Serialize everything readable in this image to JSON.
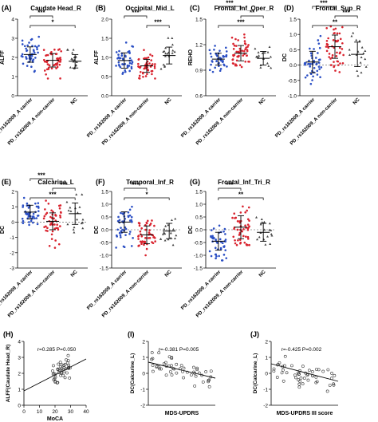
{
  "figure": {
    "scatter_colors": {
      "carrier": "#2b4fc4",
      "noncarrier": "#d9232e",
      "nc": "#444444"
    }
  },
  "chart_data": [
    {
      "type": "scatter",
      "panel": "(A)",
      "title": "Caudate Head_R",
      "ylabel": "ALFF",
      "categories": [
        "PD_rs162009_A carrier",
        "PD_rs162009_A non-carrier",
        "NC"
      ],
      "ylim": [
        0,
        4
      ],
      "yticks": [
        0,
        1,
        2,
        3,
        4
      ],
      "means": [
        2.15,
        1.85,
        1.8
      ],
      "sds": [
        0.4,
        0.35,
        0.35
      ],
      "ranges": [
        [
          1.0,
          3.6
        ],
        [
          0.9,
          3.2
        ],
        [
          1.3,
          2.4
        ]
      ],
      "counts": [
        45,
        50,
        18
      ],
      "significance": [
        {
          "from": 0,
          "to": 1,
          "label": "***"
        },
        {
          "from": 0,
          "to": 2,
          "label": "*"
        }
      ],
      "reference_line": null
    },
    {
      "type": "scatter",
      "panel": "(B)",
      "title": "Occipital_Mid_L",
      "ylabel": "ALFF",
      "categories": [
        "PD_rs162009_A carrier",
        "PD_rs162009_A non-carrier",
        "NC"
      ],
      "ylim": [
        0.0,
        2.0
      ],
      "yticks": [
        0.0,
        0.5,
        1.0,
        1.5,
        2.0
      ],
      "means": [
        0.92,
        0.78,
        1.05
      ],
      "sds": [
        0.2,
        0.17,
        0.22
      ],
      "ranges": [
        [
          0.5,
          1.6
        ],
        [
          0.45,
          1.35
        ],
        [
          0.7,
          1.55
        ]
      ],
      "counts": [
        45,
        50,
        18
      ],
      "significance": [
        {
          "from": 0,
          "to": 1,
          "label": "***"
        },
        {
          "from": 1,
          "to": 2,
          "label": "***"
        }
      ],
      "reference_line": null
    },
    {
      "type": "scatter",
      "panel": "(C)",
      "title": "Frontal_Inf_Oper_R",
      "ylabel": "REHO",
      "categories": [
        "PD_rs162009_A carrier",
        "PD_rs162009_A non-carrier",
        "NC"
      ],
      "ylim": [
        0.6,
        1.5
      ],
      "yticks": [
        0.6,
        0.9,
        1.2,
        1.5
      ],
      "means": [
        1.03,
        1.1,
        1.04
      ],
      "sds": [
        0.07,
        0.09,
        0.08
      ],
      "ranges": [
        [
          0.88,
          1.2
        ],
        [
          0.9,
          1.32
        ],
        [
          0.9,
          1.2
        ]
      ],
      "counts": [
        45,
        50,
        18
      ],
      "significance": [
        {
          "from": 0,
          "to": 1,
          "label": "***"
        },
        {
          "from": 1,
          "to": 2,
          "label": "**"
        },
        {
          "from": 0,
          "to": 2,
          "label": "***"
        }
      ],
      "reference_line": null
    },
    {
      "type": "scatter",
      "panel": "(D)",
      "title": "Frontal_Sup_R",
      "ylabel": "DC",
      "categories": [
        "PD_rs162009_A carrier",
        "PD_rs162009_A non-carrier",
        "NC"
      ],
      "ylim": [
        -1.0,
        1.5
      ],
      "yticks": [
        -1.0,
        -0.5,
        0.0,
        0.5,
        1.0,
        1.5
      ],
      "means": [
        0.1,
        0.6,
        0.35
      ],
      "sds": [
        0.35,
        0.38,
        0.4
      ],
      "ranges": [
        [
          -0.75,
          0.95
        ],
        [
          -0.35,
          1.4
        ],
        [
          -0.35,
          1.1
        ]
      ],
      "counts": [
        45,
        50,
        18
      ],
      "significance": [
        {
          "from": 0,
          "to": 1,
          "label": "***"
        },
        {
          "from": 1,
          "to": 2,
          "label": "***"
        },
        {
          "from": 0,
          "to": 2,
          "label": "**"
        }
      ],
      "reference_line": 0
    },
    {
      "type": "scatter",
      "panel": "(E)",
      "title": "Calcarine_L",
      "ylabel": "DC",
      "categories": [
        "PD_rs162009_A carrier",
        "PD_rs162009_A non-carrier",
        "NC"
      ],
      "ylim": [
        -3,
        2
      ],
      "yticks": [
        -3,
        -2,
        -1,
        0,
        1,
        2
      ],
      "means": [
        0.65,
        0.05,
        0.55
      ],
      "sds": [
        0.45,
        0.55,
        0.7
      ],
      "ranges": [
        [
          -0.6,
          1.7
        ],
        [
          -1.8,
          1.4
        ],
        [
          -0.8,
          1.8
        ]
      ],
      "counts": [
        45,
        50,
        18
      ],
      "significance": [
        {
          "from": 0,
          "to": 1,
          "label": "***"
        },
        {
          "from": 1,
          "to": 2,
          "label": "***"
        },
        {
          "from": 0,
          "to": 2,
          "label": "***"
        }
      ],
      "reference_line": 0
    },
    {
      "type": "scatter",
      "panel": "(F)",
      "title": "Temporal_Inf_R",
      "ylabel": "DC",
      "categories": [
        "PD_rs162009_A carrier",
        "PD_rs162009_A non-carrier",
        "NC"
      ],
      "ylim": [
        -1.5,
        1.5
      ],
      "yticks": [
        -1.5,
        -1.0,
        -0.5,
        0.0,
        0.5,
        1.0,
        1.5
      ],
      "means": [
        0.3,
        -0.2,
        -0.05
      ],
      "sds": [
        0.4,
        0.35,
        0.3
      ],
      "ranges": [
        [
          -0.7,
          1.3
        ],
        [
          -1.0,
          0.7
        ],
        [
          -0.6,
          0.5
        ]
      ],
      "counts": [
        45,
        50,
        18
      ],
      "significance": [
        {
          "from": 0,
          "to": 1,
          "label": "***"
        },
        {
          "from": 0,
          "to": 2,
          "label": "*"
        }
      ],
      "reference_line": 0
    },
    {
      "type": "scatter",
      "panel": "(G)",
      "title": "Frontal_Inf_Tri_R",
      "ylabel": "DC",
      "categories": [
        "PD_rs162009_A carrier",
        "PD_rs162009_A non-carrier",
        "NC"
      ],
      "ylim": [
        -1.5,
        1.5
      ],
      "yticks": [
        -1.5,
        -1.0,
        -0.5,
        0.0,
        0.5,
        1.0,
        1.5
      ],
      "means": [
        -0.45,
        0.1,
        -0.1
      ],
      "sds": [
        0.35,
        0.45,
        0.35
      ],
      "ranges": [
        [
          -1.2,
          0.8
        ],
        [
          -0.6,
          1.2
        ],
        [
          -0.7,
          0.5
        ]
      ],
      "counts": [
        45,
        50,
        18
      ],
      "significance": [
        {
          "from": 0,
          "to": 1,
          "label": "***"
        },
        {
          "from": 0,
          "to": 2,
          "label": "**"
        }
      ],
      "reference_line": 0
    },
    {
      "type": "scatter",
      "panel": "(H)",
      "xlabel": "MoCA",
      "ylabel": "ALFF(Caudate Head_R)",
      "xlim": [
        0,
        40
      ],
      "xticks": [
        0,
        10,
        20,
        30,
        40
      ],
      "ylim": [
        0,
        4
      ],
      "yticks": [
        0,
        1,
        2,
        3,
        4
      ],
      "annotation": "r=0.285   P=0.050",
      "x_range": [
        18,
        30
      ],
      "y_range": [
        1.4,
        3.4
      ],
      "count": 45,
      "fit_line": [
        [
          0,
          0.9
        ],
        [
          40,
          2.9
        ]
      ]
    },
    {
      "type": "scatter",
      "panel": "(I)",
      "xlabel": "MDS-UPDRS",
      "ylabel": "DC(Calcarine_L)",
      "ylim": [
        -2,
        2
      ],
      "yticks": [
        -2,
        -1,
        0,
        1,
        2
      ],
      "annotation": "r=-0.381   P=0.005",
      "count": 50,
      "fit_line": [
        [
          0,
          0.7
        ],
        [
          1,
          -0.3
        ]
      ]
    },
    {
      "type": "scatter",
      "panel": "(J)",
      "xlabel": "MDS-UPDRS III score",
      "ylabel": "DC(Calcarine_L)",
      "ylim": [
        -2,
        2
      ],
      "yticks": [
        -2,
        -1,
        0,
        1,
        2
      ],
      "annotation": "r=-0.425   P=0.002",
      "count": 50,
      "fit_line": [
        [
          0,
          0.6
        ],
        [
          1,
          -0.5
        ]
      ]
    }
  ]
}
